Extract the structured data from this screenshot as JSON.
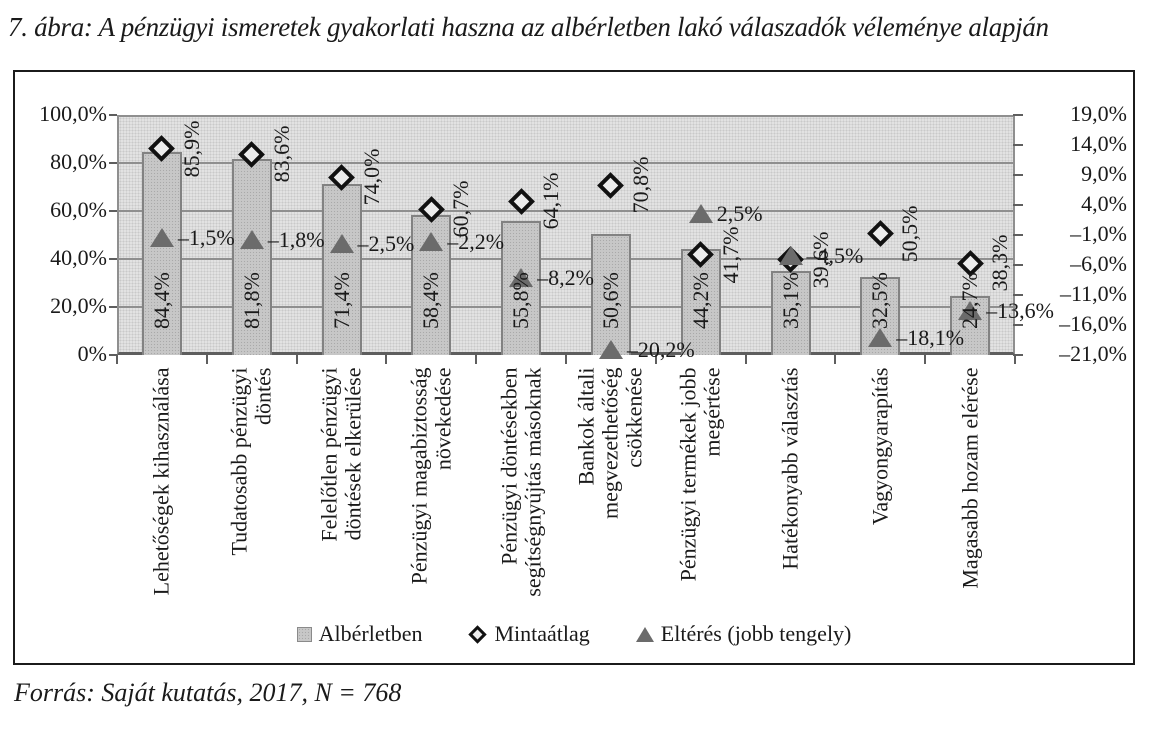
{
  "title": "7. ábra: A pénzügyi ismeretek gyakorlati haszna az albérletben lakó válaszadók véleménye alapján",
  "source": "Forrás: Saját kutatás, 2017, N = 768",
  "legend": [
    {
      "label": "Albérletben",
      "marker": "square"
    },
    {
      "label": "Mintaátlag",
      "marker": "diamond"
    },
    {
      "label": "Eltérés (jobb tengely)",
      "marker": "triangle"
    }
  ],
  "colors": {
    "bar_fill": "#c7c7c7",
    "bar_border": "#828282",
    "plot_background": "#e2e2e2",
    "gridline": "#8f8f8f",
    "diamond_marker": "#111111",
    "triangle_marker": "#6b6b6b",
    "frame_border": "#1b1b1b",
    "text": "#1a1a1a"
  },
  "chart_data": {
    "type": "bar",
    "subtype": "bar + scatter markers combo, dual axis",
    "categories": [
      "Lehetőségek kihasználása",
      "Tudatosabb pénzügyi döntés",
      "Felelőtlen pénzügyi döntések elkerülése",
      "Pénzügyi magabiztosság növekedése",
      "Pénzügyi döntésekben segítségnyújtás másoknak",
      "Bankok általi megvezethetőség csökkenése",
      "Pénzügyi termékek jobb megértése",
      "Hatékonyabb választás",
      "Vagyongyarapítás",
      "Magasabb hozam elérése"
    ],
    "category_label_lines": [
      [
        "Lehetőségek kihasználása"
      ],
      [
        "Tudatosabb pénzügyi",
        "döntés"
      ],
      [
        "Felelőtlen pénzügyi",
        "döntések elkerülése"
      ],
      [
        "Pénzügyi magabiztosság",
        "növekedése"
      ],
      [
        "Pénzügyi döntésekben",
        "segítségnyújtás másoknak"
      ],
      [
        "Bankok általi",
        "megvezethetőség",
        "csökkenése"
      ],
      [
        "Pénzügyi termékek jobb",
        "megértése"
      ],
      [
        "Hatékonyabb választás"
      ],
      [
        "Vagyongyarapítás"
      ],
      [
        "Magasabb hozam elérése"
      ]
    ],
    "series": [
      {
        "name": "Albérletben",
        "type": "bar",
        "axis": "left",
        "values": [
          84.4,
          81.8,
          71.4,
          58.4,
          55.8,
          50.6,
          44.2,
          35.1,
          32.5,
          24.7
        ],
        "labels": [
          "84,4%",
          "81,8%",
          "71,4%",
          "58,4%",
          "55,8%",
          "50,6%",
          "44,2%",
          "35,1%",
          "32,5%",
          "24,7%"
        ]
      },
      {
        "name": "Mintaátlag",
        "type": "scatter-diamond",
        "axis": "left",
        "values": [
          85.9,
          83.6,
          74.0,
          60.7,
          64.1,
          70.8,
          41.7,
          39.6,
          50.5,
          38.3
        ],
        "labels": [
          "85,9%",
          "83,6%",
          "74,0%",
          "60,7%",
          "64,1%",
          "70,8%",
          "41,7%",
          "39,6%",
          "50,5%",
          "38,3%"
        ]
      },
      {
        "name": "Eltérés (jobb tengely)",
        "type": "scatter-triangle",
        "axis": "right",
        "values": [
          -1.5,
          -1.8,
          -2.5,
          -2.2,
          -8.2,
          -20.2,
          2.5,
          -4.5,
          -18.1,
          -13.6
        ],
        "labels": [
          "–1,5%",
          "–1,8%",
          "–2,5%",
          "–2,2%",
          "–8,2%",
          "–20,2%",
          "2,5%",
          "–4,5%",
          "–18,1%",
          "–13,6%"
        ]
      }
    ],
    "left_axis": {
      "min": 0,
      "max": 100,
      "tick_values": [
        100,
        80,
        60,
        40,
        20,
        0
      ],
      "tick_labels": [
        "100,0%",
        "80,0%",
        "60,0%",
        "40,0%",
        "20,0%",
        "0%"
      ]
    },
    "right_axis": {
      "min": -21,
      "max": 19,
      "tick_values": [
        19,
        14,
        9,
        4,
        -1,
        -6,
        -11,
        -16,
        -21
      ],
      "tick_labels": [
        "19,0%",
        "14,0%",
        "9,0%",
        "4,0%",
        "–1,0%",
        "–6,0%",
        "–11,0%",
        "–16,0%",
        "–21,0%"
      ]
    },
    "grid": "horizontal gridlines every 20% of left axis",
    "legend_position": "bottom-center inside frame"
  }
}
